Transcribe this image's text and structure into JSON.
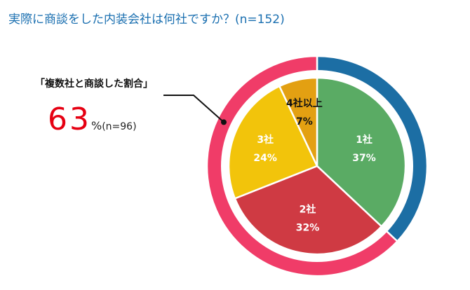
{
  "title": "実際に商談をした内装会社は何社ですか？(n=152)",
  "callout": {
    "label": "「複数社と商談した割合」",
    "value": "63",
    "unit": "%",
    "n": "(n=96)"
  },
  "chart_data": {
    "type": "pie",
    "title": "実際に商談をした内装会社は何社ですか？(n=152)",
    "inner": {
      "slices": [
        {
          "label": "1社",
          "value": 37,
          "display": "37%",
          "color": "#5aab64",
          "text_color": "#ffffff"
        },
        {
          "label": "2社",
          "value": 32,
          "display": "32%",
          "color": "#cf3a43",
          "text_color": "#ffffff"
        },
        {
          "label": "3社",
          "value": 24,
          "display": "24%",
          "color": "#f2c40b",
          "text_color": "#ffffff"
        },
        {
          "label": "4社以上",
          "value": 7,
          "display": "7%",
          "color": "#e3a012",
          "text_color": "#111111"
        }
      ]
    },
    "outer": {
      "slices": [
        {
          "name": "1社",
          "value": 37,
          "color": "#1c6ea4"
        },
        {
          "name": "複数社",
          "value": 63,
          "color": "#f03c68"
        }
      ]
    },
    "callout": {
      "label": "「複数社と商談した割合」",
      "value": 63
    }
  }
}
